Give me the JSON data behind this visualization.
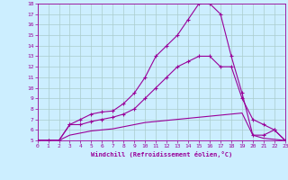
{
  "xlabel": "Windchill (Refroidissement éolien,°C)",
  "bg_color": "#cceeff",
  "line_color": "#990099",
  "grid_color": "#aacccc",
  "xmin": 0,
  "xmax": 23,
  "ymin": 5,
  "ymax": 18,
  "yticks": [
    5,
    6,
    7,
    8,
    9,
    10,
    11,
    12,
    13,
    14,
    15,
    16,
    17,
    18
  ],
  "xticks": [
    0,
    1,
    2,
    3,
    4,
    5,
    6,
    7,
    8,
    9,
    10,
    11,
    12,
    13,
    14,
    15,
    16,
    17,
    18,
    19,
    20,
    21,
    22,
    23
  ],
  "line1_x": [
    0,
    1,
    2,
    3,
    4,
    5,
    6,
    7,
    8,
    9,
    10,
    11,
    12,
    13,
    14,
    15,
    16,
    17,
    18,
    19,
    20,
    21,
    22,
    23
  ],
  "line1_y": [
    5,
    5,
    5,
    6.5,
    7,
    7.5,
    7.7,
    7.8,
    8.5,
    9.5,
    11,
    13,
    14,
    15,
    16.5,
    18,
    18,
    17,
    13,
    9.5,
    5.5,
    5.5,
    6,
    5
  ],
  "line2_x": [
    0,
    1,
    2,
    3,
    4,
    5,
    6,
    7,
    8,
    9,
    10,
    11,
    12,
    13,
    14,
    15,
    16,
    17,
    18,
    19,
    20,
    21,
    22,
    23
  ],
  "line2_y": [
    5,
    5,
    5,
    6.5,
    6.5,
    6.8,
    7,
    7.2,
    7.5,
    8,
    9,
    10,
    11,
    12,
    12.5,
    13,
    13,
    12,
    12,
    9,
    7,
    6.5,
    6,
    5
  ],
  "line3_x": [
    0,
    1,
    2,
    3,
    4,
    5,
    6,
    7,
    8,
    9,
    10,
    11,
    12,
    13,
    14,
    15,
    16,
    17,
    18,
    19,
    20,
    21,
    22,
    23
  ],
  "line3_y": [
    5,
    5,
    5,
    5.5,
    5.7,
    5.9,
    6,
    6.1,
    6.3,
    6.5,
    6.7,
    6.8,
    6.9,
    7,
    7.1,
    7.2,
    7.3,
    7.4,
    7.5,
    7.6,
    5.5,
    5.2,
    5.1,
    5
  ]
}
